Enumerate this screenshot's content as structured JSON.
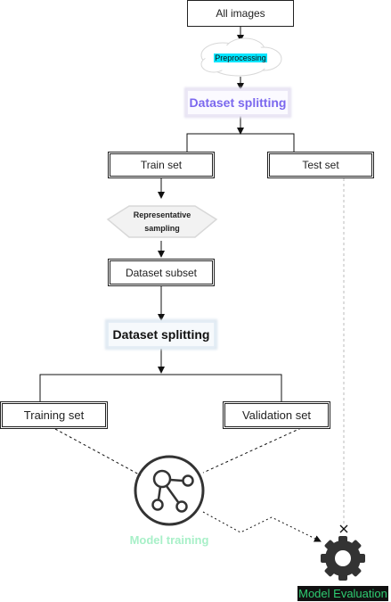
{
  "nodes": {
    "all_images": "All images",
    "preprocessing": "Preprocessing",
    "dataset_splitting_1": "Dataset splitting",
    "train_set": "Train set",
    "test_set": "Test set",
    "representative_line1": "Representative",
    "representative_line2": "sampling",
    "dataset_subset": "Dataset subset",
    "dataset_splitting_2": "Dataset splitting",
    "training_set": "Training set",
    "validation_set": "Validation set",
    "model_training": "Model training",
    "model_evaluation": "Model Evaluation"
  },
  "colors": {
    "line": "#111111",
    "preprocessing_highlight": "#00e5ff",
    "splitting_1_text": "#7b68ee",
    "model_training_text": "#a8f0c8",
    "model_evaluation_text": "#2ecc71",
    "model_evaluation_bg": "#111111",
    "dashed_gray": "#bbbbbb",
    "icon_dark": "#333333"
  }
}
